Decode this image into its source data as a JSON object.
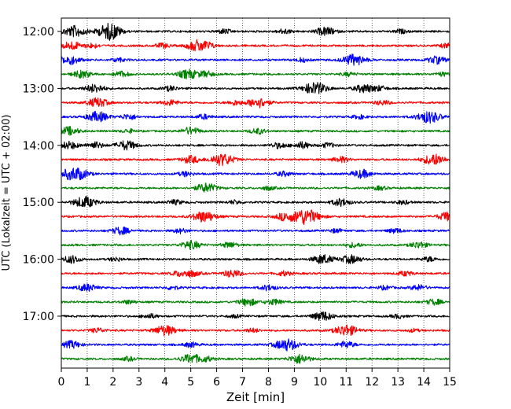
{
  "chart_data": {
    "type": "line",
    "xlabel": "Zeit  [min]",
    "ylabel": "UTC (Lokalzeit = UTC + 02:00)",
    "xlim": [
      0,
      15
    ],
    "x_ticks": [
      "0",
      "1",
      "2",
      "3",
      "4",
      "5",
      "6",
      "7",
      "8",
      "9",
      "10",
      "11",
      "12",
      "13",
      "14",
      "15"
    ],
    "y_tick_labels": [
      "12:00",
      "13:00",
      "14:00",
      "15:00",
      "16:00",
      "17:00"
    ],
    "grid": "vertical dotted at each minute",
    "row_colors": [
      "#000000",
      "#ff0000",
      "#0000ff",
      "#008000"
    ],
    "trace_count": 24,
    "traces": [
      {
        "start": "12:00",
        "events": [
          [
            0.5,
            1.2
          ],
          [
            1.8,
            1.3
          ],
          [
            2.0,
            0.7
          ],
          [
            10.2,
            0.9
          ],
          [
            8.6,
            0.5
          ],
          [
            6.3,
            0.5
          ],
          [
            13.1,
            0.4
          ]
        ]
      },
      {
        "start": "12:15",
        "events": [
          [
            0.4,
            0.9
          ],
          [
            1.2,
            0.5
          ],
          [
            3.9,
            0.5
          ],
          [
            5.5,
            1.0
          ],
          [
            14.9,
            0.5
          ],
          [
            5.1,
            0.7
          ]
        ]
      },
      {
        "start": "12:30",
        "events": [
          [
            0.3,
            1.0
          ],
          [
            2.2,
            0.4
          ],
          [
            11.3,
            1.2
          ],
          [
            14.5,
            0.8
          ],
          [
            9.3,
            0.4
          ]
        ]
      },
      {
        "start": "12:45",
        "events": [
          [
            0.8,
            0.8
          ],
          [
            4.9,
            1.0
          ],
          [
            5.6,
            0.6
          ],
          [
            2.3,
            0.6
          ],
          [
            11.1,
            0.4
          ],
          [
            14.7,
            0.4
          ]
        ]
      },
      {
        "start": "13:00",
        "events": [
          [
            1.3,
            0.9
          ],
          [
            9.8,
            1.3
          ],
          [
            11.7,
            0.9
          ],
          [
            4.2,
            0.5
          ],
          [
            12.3,
            0.5
          ]
        ]
      },
      {
        "start": "13:15",
        "events": [
          [
            1.4,
            1.0
          ],
          [
            7.6,
            1.1
          ],
          [
            6.7,
            0.5
          ],
          [
            4.2,
            0.6
          ],
          [
            12.4,
            0.5
          ]
        ]
      },
      {
        "start": "13:30",
        "events": [
          [
            1.4,
            1.1
          ],
          [
            2.6,
            0.6
          ],
          [
            14.2,
            1.3
          ],
          [
            5.5,
            0.5
          ],
          [
            11.5,
            0.4
          ]
        ]
      },
      {
        "start": "13:45",
        "events": [
          [
            0.3,
            0.9
          ],
          [
            5.0,
            0.8
          ],
          [
            7.6,
            0.6
          ],
          [
            2.6,
            0.4
          ]
        ]
      },
      {
        "start": "14:00",
        "events": [
          [
            0.3,
            0.8
          ],
          [
            1.3,
            0.7
          ],
          [
            2.5,
            1.0
          ],
          [
            8.4,
            0.6
          ],
          [
            9.3,
            0.7
          ],
          [
            10.3,
            0.5
          ]
        ]
      },
      {
        "start": "14:15",
        "events": [
          [
            6.2,
            1.3
          ],
          [
            5.0,
            0.8
          ],
          [
            14.4,
            1.2
          ],
          [
            10.8,
            0.6
          ]
        ]
      },
      {
        "start": "14:30",
        "events": [
          [
            0.3,
            0.9
          ],
          [
            0.7,
            1.0
          ],
          [
            11.6,
            0.9
          ],
          [
            4.8,
            0.5
          ],
          [
            8.6,
            0.5
          ]
        ]
      },
      {
        "start": "14:45",
        "events": [
          [
            5.6,
            1.0
          ],
          [
            8.0,
            0.4
          ],
          [
            12.3,
            0.4
          ]
        ]
      },
      {
        "start": "15:00",
        "events": [
          [
            0.9,
            1.2
          ],
          [
            10.8,
            0.8
          ],
          [
            4.4,
            0.5
          ],
          [
            13.2,
            0.4
          ],
          [
            6.7,
            0.4
          ]
        ]
      },
      {
        "start": "15:15",
        "events": [
          [
            9.4,
            1.7
          ],
          [
            5.5,
            1.2
          ],
          [
            14.9,
            0.9
          ],
          [
            8.6,
            0.7
          ]
        ]
      },
      {
        "start": "15:30",
        "events": [
          [
            2.3,
            0.8
          ],
          [
            4.6,
            0.5
          ],
          [
            12.9,
            0.5
          ],
          [
            10.6,
            0.4
          ]
        ]
      },
      {
        "start": "15:45",
        "events": [
          [
            5.0,
            0.9
          ],
          [
            6.5,
            0.6
          ],
          [
            11.3,
            0.5
          ],
          [
            13.8,
            0.7
          ]
        ]
      },
      {
        "start": "16:00",
        "events": [
          [
            0.4,
            0.8
          ],
          [
            10.1,
            1.0
          ],
          [
            11.2,
            0.9
          ],
          [
            14.2,
            0.5
          ],
          [
            2.1,
            0.4
          ]
        ]
      },
      {
        "start": "16:15",
        "events": [
          [
            5.0,
            0.7
          ],
          [
            6.6,
            0.8
          ],
          [
            8.6,
            0.5
          ],
          [
            13.3,
            0.5
          ],
          [
            4.5,
            0.5
          ]
        ]
      },
      {
        "start": "16:30",
        "events": [
          [
            1.0,
            0.8
          ],
          [
            8.0,
            0.6
          ],
          [
            13.8,
            0.6
          ],
          [
            12.5,
            0.4
          ],
          [
            4.3,
            0.4
          ]
        ]
      },
      {
        "start": "16:45",
        "events": [
          [
            7.2,
            0.8
          ],
          [
            8.2,
            0.6
          ],
          [
            14.4,
            0.6
          ],
          [
            2.6,
            0.4
          ]
        ]
      },
      {
        "start": "17:00",
        "events": [
          [
            10.1,
            1.0
          ],
          [
            3.4,
            0.5
          ],
          [
            13.0,
            0.4
          ],
          [
            6.7,
            0.3
          ]
        ]
      },
      {
        "start": "17:15",
        "events": [
          [
            4.0,
            1.1
          ],
          [
            11.0,
            1.2
          ],
          [
            1.4,
            0.5
          ],
          [
            7.4,
            0.4
          ],
          [
            13.6,
            0.3
          ]
        ]
      },
      {
        "start": "17:30",
        "events": [
          [
            0.4,
            0.8
          ],
          [
            8.7,
            1.3
          ],
          [
            11.0,
            0.7
          ],
          [
            5.0,
            0.5
          ]
        ]
      },
      {
        "start": "17:45",
        "events": [
          [
            5.0,
            1.0
          ],
          [
            9.2,
            1.0
          ],
          [
            5.6,
            0.5
          ],
          [
            2.6,
            0.4
          ]
        ]
      }
    ]
  }
}
